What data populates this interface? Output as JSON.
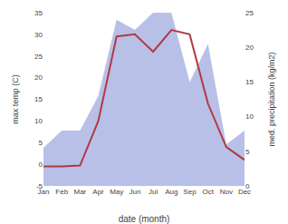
{
  "chart_data": {
    "type": "line",
    "categories": [
      "Jan",
      "Feb",
      "Mar",
      "Apr",
      "May",
      "Jun",
      "Jul",
      "Aug",
      "Sep",
      "Oct",
      "Nov",
      "Dec"
    ],
    "xlabel": "date (month)",
    "ylabel": "max temp (C)",
    "y2label": "med. precipitation (kg/m2)",
    "series": [
      {
        "type": "area",
        "axis": "y2",
        "color": "#b8c0e8",
        "values": [
          5.5,
          8.0,
          8.0,
          13.0,
          24.0,
          22.5,
          25.0,
          25.0,
          15.0,
          20.5,
          6.0,
          8.0
        ]
      },
      {
        "type": "line",
        "color": "#b03a45",
        "values": [
          -0.5,
          -0.5,
          -0.3,
          10.0,
          29.5,
          30.0,
          26.0,
          31.0,
          30.0,
          14.0,
          4.0,
          1.0
        ]
      }
    ],
    "ylim": [
      -5,
      35
    ],
    "yticks": [
      -5,
      0,
      5,
      10,
      15,
      20,
      25,
      30,
      35
    ],
    "y2lim": [
      0,
      25
    ],
    "y2ticks": [
      0,
      5,
      10,
      15,
      20,
      25
    ],
    "grid": false
  }
}
